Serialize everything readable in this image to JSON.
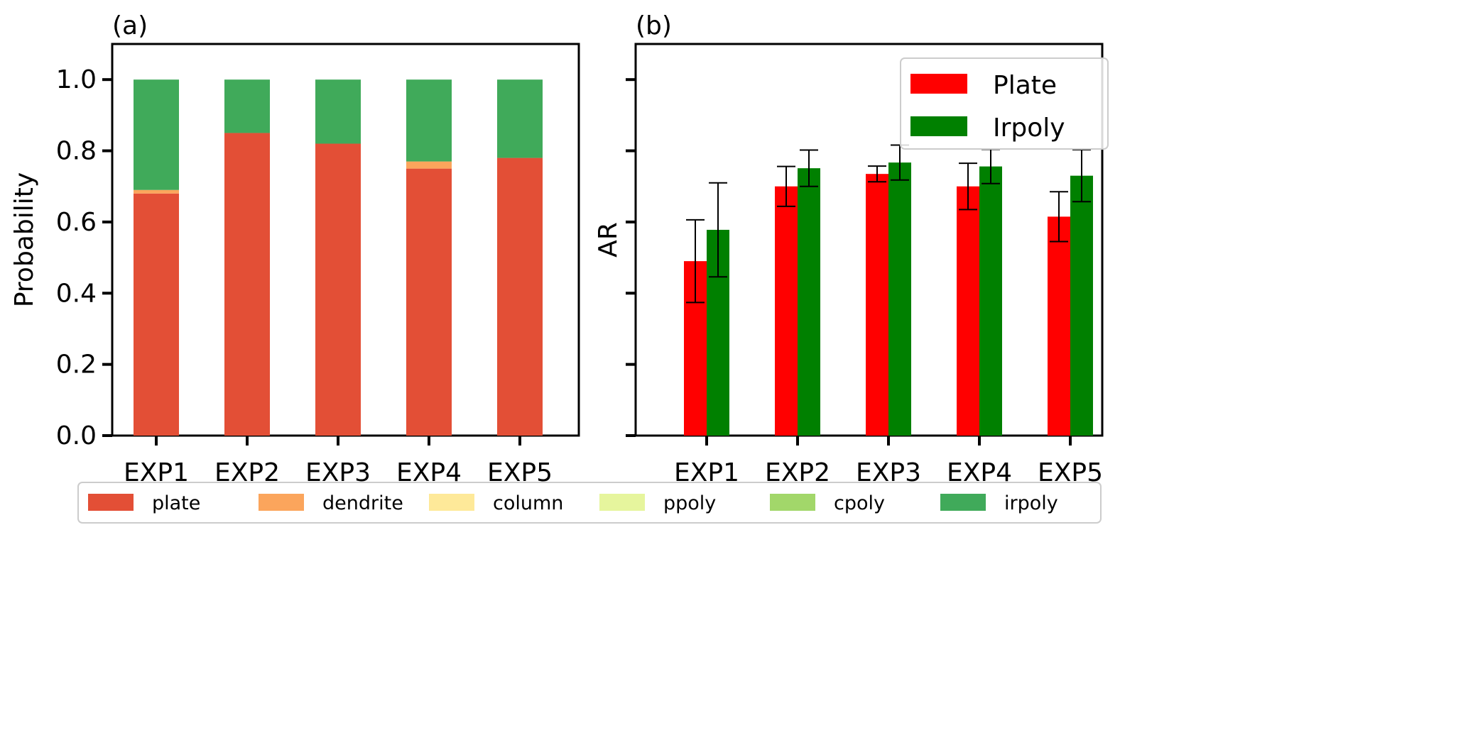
{
  "chart_data": [
    {
      "type": "bar",
      "stacked": true,
      "panel_label": "(a)",
      "title": "",
      "xlabel": "",
      "ylabel": "Probability",
      "categories": [
        "EXP1",
        "EXP2",
        "EXP3",
        "EXP4",
        "EXP5"
      ],
      "ylim": [
        0,
        1.1
      ],
      "yticks": [
        0.0,
        0.2,
        0.4,
        0.6,
        0.8,
        1.0
      ],
      "ytick_labels": [
        "0.0",
        "0.2",
        "0.4",
        "0.6",
        "0.8",
        "1.0"
      ],
      "grid": false,
      "series": [
        {
          "name": "plate",
          "color": "#e34f36",
          "values": [
            0.68,
            0.85,
            0.82,
            0.75,
            0.78
          ]
        },
        {
          "name": "dendrite",
          "color": "#fba55c",
          "values": [
            0.01,
            0.0,
            0.0,
            0.02,
            0.0
          ]
        },
        {
          "name": "column",
          "color": "#fee999",
          "values": [
            0,
            0,
            0,
            0,
            0
          ]
        },
        {
          "name": "ppoly",
          "color": "#e6f59d",
          "values": [
            0,
            0,
            0,
            0,
            0
          ]
        },
        {
          "name": "cpoly",
          "color": "#a2d76a",
          "values": [
            0,
            0,
            0,
            0,
            0
          ]
        },
        {
          "name": "irpoly",
          "color": "#40aa5a",
          "values": [
            0.31,
            0.15,
            0.18,
            0.23,
            0.22
          ]
        }
      ],
      "legend_placement": "bottom (shared)"
    },
    {
      "type": "bar",
      "grouped": true,
      "panel_label": "(b)",
      "title": "",
      "xlabel": "",
      "ylabel": "AR",
      "categories": [
        "EXP1",
        "EXP2",
        "EXP3",
        "EXP4",
        "EXP5"
      ],
      "ylim": [
        0,
        1.1
      ],
      "yticks": [
        0.0,
        0.2,
        0.4,
        0.6,
        0.8,
        1.0
      ],
      "ytick_labels_shown": false,
      "grid": false,
      "series": [
        {
          "name": "Plate",
          "color": "#ff0000",
          "values": [
            0.49,
            0.7,
            0.735,
            0.7,
            0.615
          ],
          "error": [
            0.116,
            0.056,
            0.022,
            0.065,
            0.07
          ]
        },
        {
          "name": "Irpoly",
          "color": "#008000",
          "values": [
            0.578,
            0.751,
            0.767,
            0.756,
            0.73
          ],
          "error": [
            0.132,
            0.051,
            0.049,
            0.048,
            0.073
          ]
        }
      ],
      "legend_placement": "upper right"
    }
  ],
  "shared_legend": [
    "plate",
    "dendrite",
    "column",
    "ppoly",
    "cpoly",
    "irpoly"
  ]
}
